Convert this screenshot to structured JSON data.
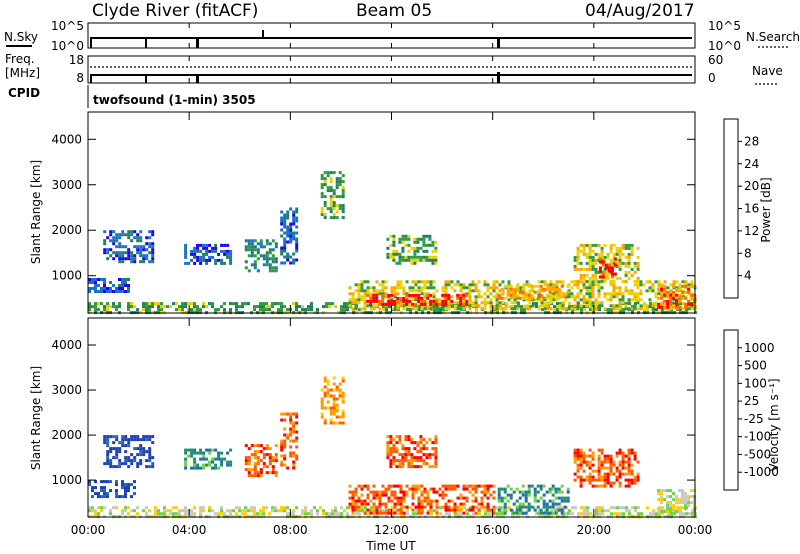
{
  "header": {
    "station": "Clyde River (fitACF)",
    "beam": "Beam 05",
    "date": "04/Aug/2017"
  },
  "panels": {
    "nsky_label": "N.Sky",
    "nsky_ticks": [
      "10^5",
      "10^0"
    ],
    "nsearch_label": "N.Search",
    "nsearch_ticks": [
      "10^5",
      "10^0"
    ],
    "freq_label_line1": "Freq.",
    "freq_label_line2": "[MHz]",
    "freq_ticks": [
      "18",
      "8"
    ],
    "nave_label": "Nave",
    "nave_ticks": [
      "60",
      "0"
    ],
    "cpid_label": "CPID",
    "cpid_value": "twofsound (1-min) 3505"
  },
  "chart_data": [
    {
      "type": "heatmap",
      "quantity": "power",
      "ylabel": "Slant Range [km]",
      "ylim": [
        180,
        4600
      ],
      "yticks": [
        "1000",
        "2000",
        "3000",
        "4000"
      ],
      "xlim": [
        0,
        24
      ],
      "colorbar": {
        "label": "Power [dB]",
        "ticks": [
          "28",
          "24",
          "20",
          "16",
          "12",
          "8",
          "4"
        ],
        "colors": [
          "#1f00ff",
          "#1a6fd4",
          "#1f7f5f",
          "#2e9c3c",
          "#e8d400",
          "#ffa400",
          "#ff6a00",
          "#ff0000"
        ]
      },
      "regions": [
        {
          "t": [
            0.0,
            24.0
          ],
          "r": [
            180,
            420
          ],
          "level": 3
        },
        {
          "t": [
            0.0,
            1.6
          ],
          "r": [
            650,
            950
          ],
          "level": 1
        },
        {
          "t": [
            0.6,
            2.6
          ],
          "r": [
            1300,
            2000
          ],
          "level": 1
        },
        {
          "t": [
            3.8,
            5.6
          ],
          "r": [
            1300,
            1700
          ],
          "level": 1
        },
        {
          "t": [
            6.2,
            7.4
          ],
          "r": [
            1100,
            1800
          ],
          "level": 2
        },
        {
          "t": [
            7.6,
            8.2
          ],
          "r": [
            1300,
            2500
          ],
          "level": 1
        },
        {
          "t": [
            9.2,
            10.1
          ],
          "r": [
            2300,
            3300
          ],
          "level": 3
        },
        {
          "t": [
            10.3,
            24.0
          ],
          "r": [
            250,
            900
          ],
          "level": 4
        },
        {
          "t": [
            11.0,
            15.0
          ],
          "r": [
            400,
            600
          ],
          "level": 7
        },
        {
          "t": [
            11.8,
            13.8
          ],
          "r": [
            1300,
            1900
          ],
          "level": 3
        },
        {
          "t": [
            16.2,
            19.0
          ],
          "r": [
            500,
            800
          ],
          "level": 5
        },
        {
          "t": [
            19.2,
            21.8
          ],
          "r": [
            900,
            1700
          ],
          "level": 4
        },
        {
          "t": [
            20.2,
            20.8
          ],
          "r": [
            1000,
            1400
          ],
          "level": 7
        },
        {
          "t": [
            22.5,
            24.0
          ],
          "r": [
            300,
            800
          ],
          "level": 6
        }
      ]
    },
    {
      "type": "heatmap",
      "quantity": "velocity",
      "ylabel": "Slant Range [km]",
      "xlabel": "Time UT",
      "ylim": [
        180,
        4600
      ],
      "yticks": [
        "1000",
        "2000",
        "3000",
        "4000"
      ],
      "xticks": [
        "00:00",
        "04:00",
        "08:00",
        "12:00",
        "16:00",
        "20:00",
        "00:00"
      ],
      "xlim": [
        0,
        24
      ],
      "colorbar": {
        "label": "Velocity [m s⁻¹]",
        "ticks": [
          "1000",
          "500",
          "100",
          "25",
          "-25",
          "-100",
          "-500",
          "-1000"
        ],
        "colors": [
          "#1f3fb3",
          "#2166c2",
          "#1d8f6e",
          "#6ed63a",
          "#c8c8c8",
          "#ffd000",
          "#ff9a00",
          "#ff5a00",
          "#ff0000"
        ]
      },
      "regions": [
        {
          "t": [
            0.0,
            24.0
          ],
          "r": [
            180,
            420
          ],
          "level": 4
        },
        {
          "t": [
            0.0,
            1.8
          ],
          "r": [
            650,
            1000
          ],
          "level": 0
        },
        {
          "t": [
            0.6,
            2.6
          ],
          "r": [
            1300,
            2000
          ],
          "level": 0
        },
        {
          "t": [
            3.8,
            5.6
          ],
          "r": [
            1300,
            1700
          ],
          "level": 2
        },
        {
          "t": [
            6.2,
            7.4
          ],
          "r": [
            1100,
            1800
          ],
          "level": 7
        },
        {
          "t": [
            7.6,
            8.2
          ],
          "r": [
            1300,
            2500
          ],
          "level": 7
        },
        {
          "t": [
            9.2,
            10.1
          ],
          "r": [
            2300,
            3300
          ],
          "level": 6
        },
        {
          "t": [
            10.3,
            16.0
          ],
          "r": [
            250,
            900
          ],
          "level": 7
        },
        {
          "t": [
            11.8,
            13.8
          ],
          "r": [
            1300,
            2000
          ],
          "level": 7
        },
        {
          "t": [
            16.2,
            19.0
          ],
          "r": [
            300,
            900
          ],
          "level": 2
        },
        {
          "t": [
            19.2,
            21.8
          ],
          "r": [
            900,
            1700
          ],
          "level": 7
        },
        {
          "t": [
            22.5,
            24.0
          ],
          "r": [
            300,
            800
          ],
          "level": 4
        }
      ]
    }
  ]
}
